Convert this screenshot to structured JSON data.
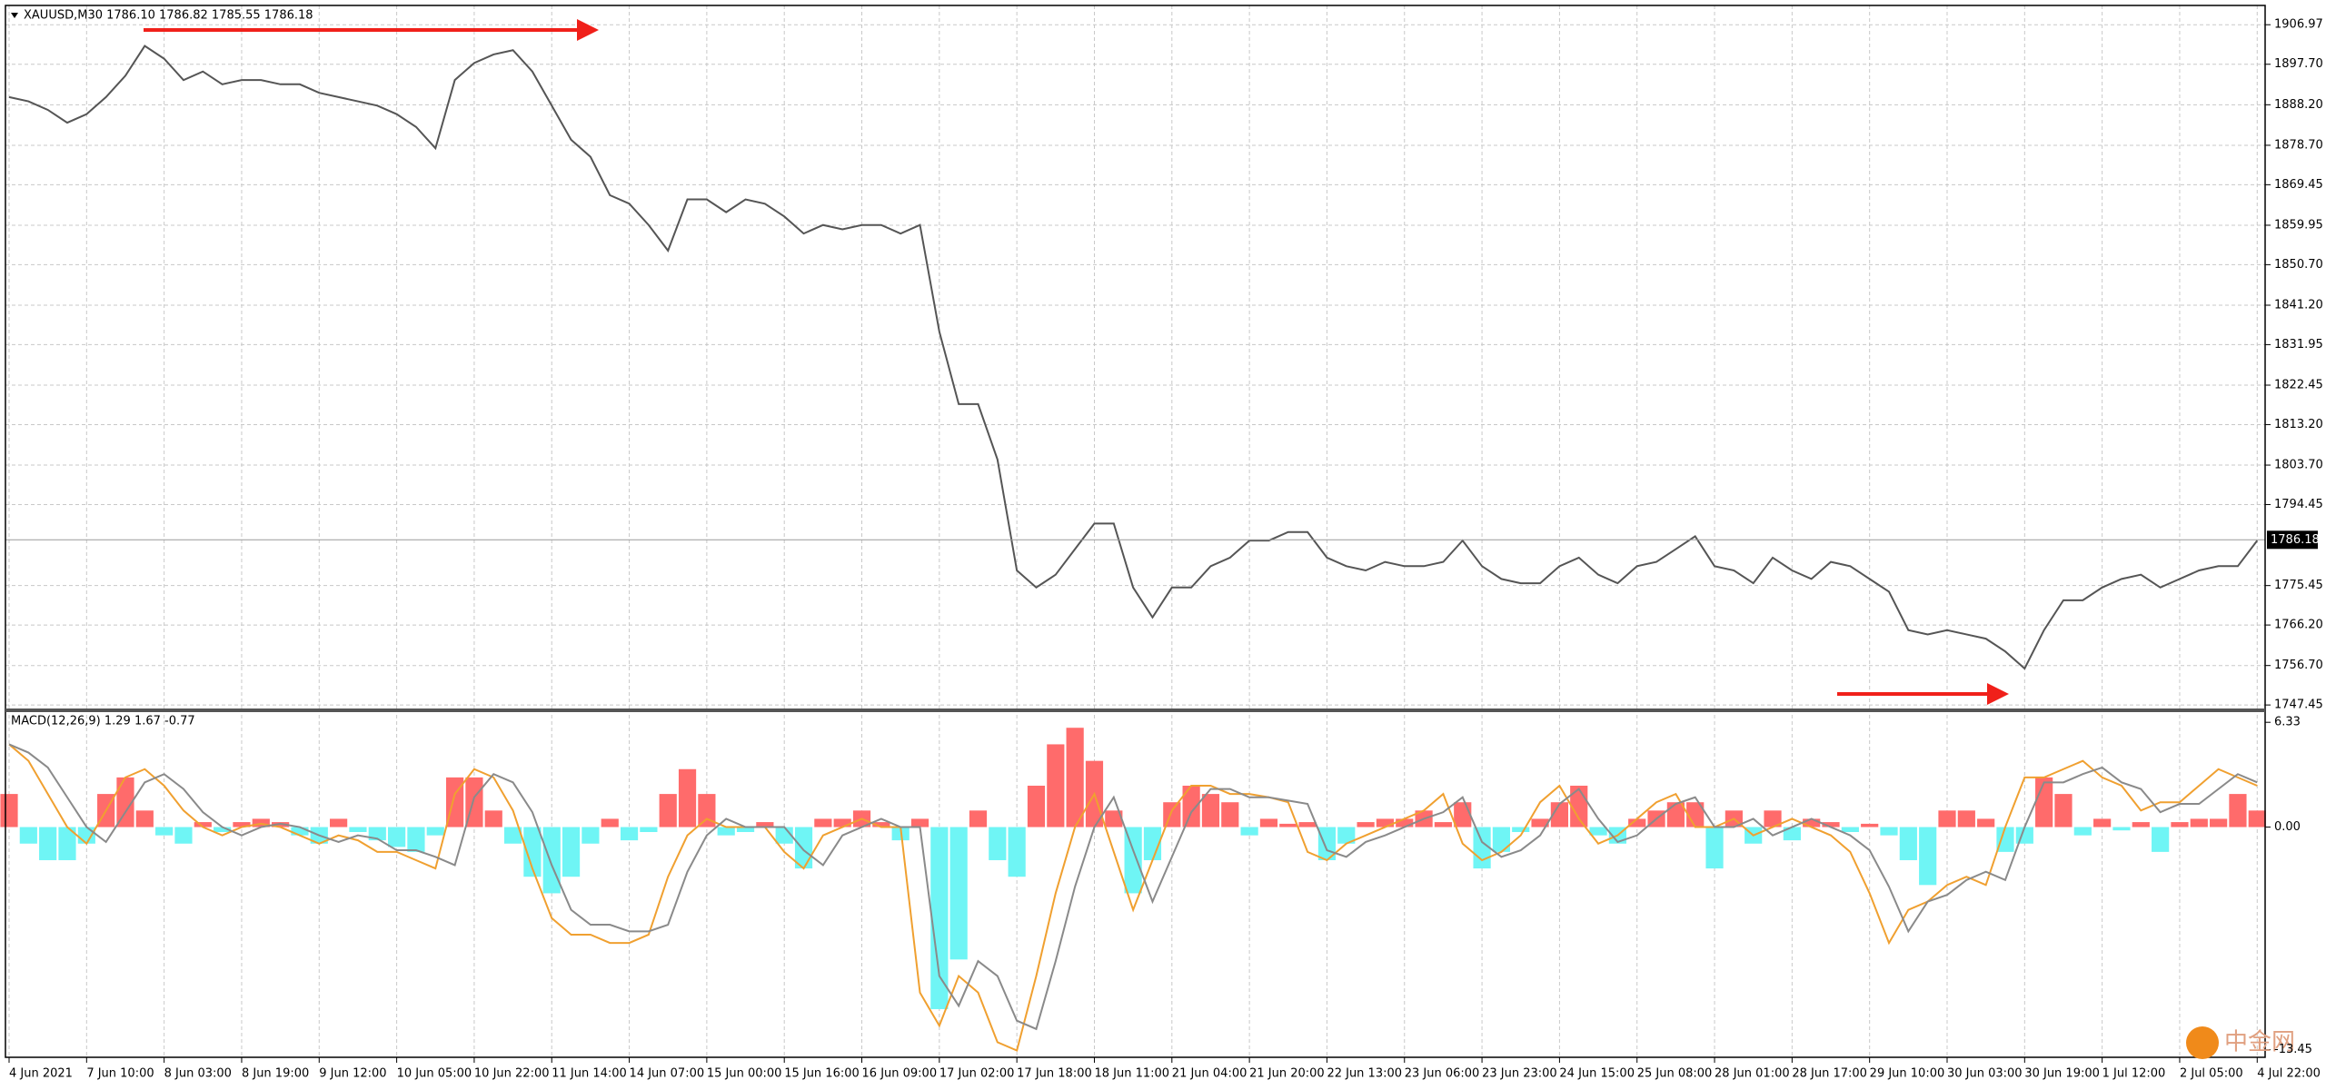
{
  "chart_data": {
    "type": "line",
    "title": "XAUUSD,M30  1786.10 1786.82 1785.55 1786.18",
    "categories": [
      "4 Jun 2021",
      null,
      null,
      null,
      "7 Jun 10:00",
      null,
      null,
      null,
      "8 Jun 03:00",
      null,
      null,
      null,
      "8 Jun 19:00",
      null,
      null,
      null,
      "9 Jun 12:00",
      null,
      null,
      null,
      "10 Jun 05:00",
      null,
      null,
      null,
      "10 Jun 22:00",
      null,
      null,
      null,
      "11 Jun 14:00",
      null,
      null,
      null,
      "14 Jun 07:00",
      null,
      null,
      null,
      "15 Jun 00:00",
      null,
      null,
      null,
      "15 Jun 16:00",
      null,
      null,
      null,
      "16 Jun 09:00",
      null,
      null,
      null,
      "17 Jun 02:00",
      null,
      null,
      null,
      "17 Jun 18:00",
      null,
      null,
      null,
      "18 Jun 11:00",
      null,
      null,
      null,
      "21 Jun 04:00",
      null,
      null,
      null,
      "21 Jun 20:00",
      null,
      null,
      null,
      "22 Jun 13:00",
      null,
      null,
      null,
      "23 Jun 06:00",
      null,
      null,
      null,
      "23 Jun 23:00",
      null,
      null,
      null,
      "24 Jun 15:00",
      null,
      null,
      null,
      "25 Jun 08:00",
      null,
      null,
      null,
      "28 Jun 01:00",
      null,
      null,
      null,
      "28 Jun 17:00",
      null,
      null,
      null,
      "29 Jun 10:00",
      null,
      null,
      null,
      "30 Jun 03:00",
      null,
      null,
      null,
      "30 Jun 19:00",
      null,
      null,
      null,
      "1 Jul 12:00",
      null,
      null,
      null,
      "2 Jul 05:00",
      null,
      null,
      null,
      "4 Jul 22:00"
    ],
    "series": [
      {
        "color": "#555555",
        "values": [
          1890,
          1889,
          1887,
          1884,
          1886,
          1890,
          1895,
          1902,
          1899,
          1894,
          1896,
          1893,
          1894,
          1894,
          1893,
          1893,
          1891,
          1890,
          1889,
          1888,
          1886,
          1883,
          1878,
          1894,
          1898,
          1900,
          1901,
          1896,
          1888,
          1880,
          1876,
          1867,
          1865,
          1860,
          1854,
          1866,
          1866,
          1863,
          1866,
          1865,
          1862,
          1858,
          1860,
          1859,
          1860,
          1860,
          1858,
          1860,
          1835,
          1818,
          1818,
          1805,
          1779,
          1775,
          1778,
          1784,
          1790,
          1790,
          1775,
          1768,
          1775,
          1775,
          1780,
          1782,
          1786,
          1786,
          1788,
          1788,
          1782,
          1780,
          1779,
          1781,
          1780,
          1780,
          1781,
          1786,
          1780,
          1777,
          1776,
          1776,
          1780,
          1782,
          1778,
          1776,
          1780,
          1781,
          1784,
          1787,
          1780,
          1779,
          1776,
          1782,
          1779,
          1777,
          1781,
          1780,
          1777,
          1774,
          1765,
          1764,
          1765,
          1764,
          1763,
          1760,
          1756,
          1765,
          1772,
          1772,
          1775,
          1777,
          1778,
          1775,
          1777,
          1779,
          1780,
          1780,
          1786
        ]
      }
    ],
    "last_price": 1786.18,
    "ylim": [
      1746.41,
      1911.49
    ],
    "yticks": [
      1906.97,
      {
        "value": 1897.7,
        "label": "1897.70"
      },
      {
        "value": 1888.2,
        "label": "1888.20"
      },
      {
        "value": 1878.7,
        "label": "1878.70"
      },
      1869.45,
      1859.95,
      {
        "value": 1850.7,
        "label": "1850.70"
      },
      {
        "value": 1841.2,
        "label": "1841.20"
      },
      1831.95,
      1822.45,
      {
        "value": 1813.2,
        "label": "1813.20"
      },
      {
        "value": 1803.7,
        "label": "1803.70"
      },
      1794.45,
      1775.45,
      {
        "value": 1766.2,
        "label": "1766.20"
      },
      {
        "value": 1756.7,
        "label": "1756.70"
      },
      1747.45
    ],
    "grid": true,
    "watermark": "中金网",
    "indicator": {
      "type": "bar",
      "title": "MACD(12,26,9) 1.29 1.67 -0.77",
      "series": [
        {
          "color": "#ff6b6b",
          "negative_color": "#6ff5f5",
          "values": [
            2,
            -1,
            -2,
            -2,
            -1,
            2,
            3,
            1,
            -0.5,
            -1,
            0.3,
            -0.3,
            0.3,
            0.5,
            0.3,
            -0.5,
            -1,
            0.5,
            -0.3,
            -0.8,
            -1.2,
            -1.5,
            -0.5,
            3,
            3,
            1,
            -1,
            -3,
            -4,
            -3,
            -1,
            0.5,
            -0.8,
            -0.3,
            2,
            3.5,
            2,
            -0.5,
            -0.3,
            0.3,
            -1,
            -2.5,
            0.5,
            0.5,
            1,
            0.3,
            -0.8,
            0.5,
            -11,
            -8,
            1,
            -2,
            -3,
            2.5,
            5,
            6,
            4,
            1,
            -4,
            -2,
            1.5,
            2.5,
            2,
            1.5,
            -0.5,
            0.5,
            0.2,
            0.3,
            -2,
            -1,
            0.3,
            0.5,
            0.5,
            1,
            0.3,
            1.5,
            -2.5,
            -1.5,
            -0.3,
            0.5,
            1.5,
            2.5,
            -0.5,
            -1,
            0.5,
            1,
            1.5,
            1.5,
            -2.5,
            1,
            -1,
            1,
            -0.8,
            0.5,
            0.3,
            -0.3,
            0.2,
            -0.5,
            -2,
            -3.5,
            1,
            1,
            0.5,
            -1.5,
            -1,
            3,
            2,
            -0.5,
            0.5,
            -0.2,
            0.3,
            -1.5,
            0.3,
            0.5,
            0.5,
            2,
            1
          ]
        },
        {
          "color": "#f0a030",
          "values": [
            5,
            4,
            2,
            0,
            -1,
            1,
            3,
            3.5,
            2.5,
            1,
            0,
            -0.5,
            0,
            0.2,
            0,
            -0.5,
            -1,
            -0.5,
            -0.8,
            -1.5,
            -1.5,
            -2,
            -2.5,
            2,
            3.5,
            3,
            1,
            -2.5,
            -5.5,
            -6.5,
            -6.5,
            -7,
            -7,
            -6.5,
            -3,
            -0.5,
            0.5,
            0,
            0,
            0,
            -1.5,
            -2.5,
            -0.5,
            0,
            0.5,
            0,
            0,
            -10,
            -12,
            -9,
            -10,
            -13,
            -13.5,
            -9,
            -4,
            0,
            2,
            -1.5,
            -5,
            -2,
            1,
            2.5,
            2.5,
            2,
            2,
            1.8,
            1.5,
            -1.5,
            -2,
            -1,
            -0.5,
            0,
            0.5,
            1,
            2,
            -1,
            -2,
            -1.5,
            -0.5,
            1.5,
            2.5,
            0.5,
            -1,
            -0.5,
            0.5,
            1.5,
            2,
            0,
            0,
            0.5,
            -0.5,
            0,
            0.5,
            0,
            -0.5,
            -1.5,
            -4,
            -7,
            -5,
            -4.5,
            -3.5,
            -3,
            -3.5,
            0,
            3,
            3,
            3.5,
            4,
            3,
            2.5,
            1,
            1.5,
            1.5,
            2.5,
            3.5,
            3,
            2.5
          ]
        },
        {
          "color": "#8a8a8a",
          "values": [
            5,
            4.5,
            3.6,
            1.8,
            0,
            -0.9,
            0.9,
            2.7,
            3.2,
            2.3,
            0.9,
            0,
            -0.5,
            0,
            0.2,
            0,
            -0.5,
            -0.9,
            -0.5,
            -0.7,
            -1.4,
            -1.4,
            -1.8,
            -2.3,
            1.8,
            3.2,
            2.7,
            0.9,
            -2.3,
            -5,
            -5.9,
            -5.9,
            -6.3,
            -6.3,
            -5.9,
            -2.7,
            -0.5,
            0.5,
            0,
            0,
            0,
            -1.4,
            -2.3,
            -0.5,
            0,
            0.5,
            0,
            0,
            -9,
            -10.8,
            -8.1,
            -9,
            -11.7,
            -12.2,
            -8.1,
            -3.6,
            0,
            1.8,
            -1.4,
            -4.5,
            -1.8,
            0.9,
            2.3,
            2.3,
            1.8,
            1.8,
            1.6,
            1.4,
            -1.4,
            -1.8,
            -0.9,
            -0.5,
            0,
            0.5,
            0.9,
            1.8,
            -0.9,
            -1.8,
            -1.4,
            -0.5,
            1.4,
            2.3,
            0.5,
            -0.9,
            -0.5,
            0.5,
            1.4,
            1.8,
            0,
            0,
            0.5,
            -0.5,
            0,
            0.5,
            0,
            -0.5,
            -1.4,
            -3.6,
            -6.3,
            -4.5,
            -4.1,
            -3.2,
            -2.7,
            -3.2,
            0,
            2.7,
            2.7,
            3.2,
            3.6,
            2.7,
            2.3,
            0.9,
            1.4,
            1.4,
            2.3,
            3.2,
            2.7
          ]
        }
      ],
      "ylim": [
        -13.91,
        6.78
      ],
      "yticks": [
        6.33,
        {
          "value": 0,
          "label": "0.00"
        },
        -13.45
      ]
    }
  }
}
